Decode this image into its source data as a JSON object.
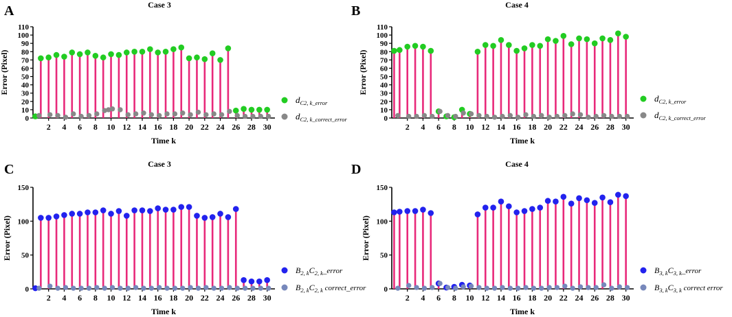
{
  "chart_data": [
    {
      "panel": "A",
      "type": "lollipop",
      "title": "Case 3",
      "xlabel": "Time k",
      "ylabel": "Error (Pixel)",
      "xticks": [
        "2",
        "4",
        "6",
        "8",
        "10",
        "12",
        "14",
        "16",
        "18",
        "20",
        "22",
        "24",
        "26",
        "28",
        "30"
      ],
      "yticks": [
        "0",
        "10",
        "20",
        "30",
        "40",
        "50",
        "60",
        "70",
        "80",
        "90",
        "100",
        "110"
      ],
      "ylim": [
        0,
        110
      ],
      "xlim": [
        0,
        31
      ],
      "series": [
        {
          "name": "d_error",
          "legend_main": "d",
          "legend_sub": "C2, k_error",
          "color": "#22cc22",
          "x": [
            0.3,
            1,
            2,
            3,
            4,
            5,
            6,
            7,
            8,
            9,
            10,
            11,
            12,
            13,
            14,
            15,
            16,
            17,
            18,
            19,
            20,
            21,
            22,
            23,
            24,
            25,
            26,
            27,
            28,
            29,
            30
          ],
          "values": [
            2,
            72,
            73,
            76,
            74,
            79,
            77,
            79,
            75,
            73,
            77,
            76,
            79,
            80,
            80,
            83,
            79,
            80,
            83,
            85,
            72,
            73,
            71,
            78,
            70,
            84,
            9,
            11,
            10,
            10,
            10
          ]
        },
        {
          "name": "d_correct_error",
          "legend_main": "d",
          "legend_sub": "C2, k_correct_error",
          "color": "#888888",
          "x": [
            0.6,
            2,
            3,
            4,
            5,
            6,
            7,
            8,
            9,
            9.5,
            10,
            11,
            12,
            13,
            14,
            15,
            16,
            17,
            18,
            19,
            20,
            21,
            22,
            23,
            24,
            25,
            26,
            27,
            28,
            29,
            30
          ],
          "values": [
            3,
            4,
            3,
            1,
            5,
            2,
            3,
            5,
            9,
            10,
            11,
            10,
            4,
            5,
            6,
            4,
            3,
            5,
            5,
            6,
            4,
            7,
            4,
            5,
            4,
            8,
            3,
            2,
            2,
            2,
            2
          ]
        }
      ]
    },
    {
      "panel": "B",
      "type": "lollipop",
      "title": "Case 4",
      "xlabel": "Time k",
      "ylabel": "Error (Pixel)",
      "xticks": [
        "2",
        "4",
        "6",
        "8",
        "10",
        "12",
        "14",
        "16",
        "18",
        "20",
        "22",
        "24",
        "26",
        "28",
        "30"
      ],
      "yticks": [
        "0",
        "10",
        "20",
        "30",
        "40",
        "50",
        "60",
        "70",
        "80",
        "90",
        "100",
        "110"
      ],
      "ylim": [
        0,
        110
      ],
      "xlim": [
        0,
        31
      ],
      "series": [
        {
          "name": "d_error",
          "legend_main": "d",
          "legend_sub": "C2, k_error",
          "color": "#22cc22",
          "x": [
            0.3,
            1,
            2,
            3,
            4,
            5,
            6,
            7,
            8,
            9,
            10,
            11,
            12,
            13,
            14,
            15,
            16,
            17,
            18,
            19,
            20,
            21,
            22,
            23,
            24,
            25,
            26,
            27,
            28,
            29,
            30
          ],
          "values": [
            81,
            82,
            86,
            87,
            86,
            81,
            8,
            2,
            1,
            10,
            5,
            80,
            88,
            87,
            94,
            88,
            81,
            84,
            88,
            87,
            95,
            93,
            99,
            89,
            96,
            95,
            90,
            96,
            94,
            102,
            98
          ]
        },
        {
          "name": "d_correct_error",
          "legend_main": "d",
          "legend_sub": "C2, k_correct_error",
          "color": "#888888",
          "x": [
            0.6,
            2,
            3,
            4,
            5,
            6,
            7,
            8,
            9,
            10,
            11,
            12,
            13,
            14,
            15,
            16,
            17,
            18,
            19,
            20,
            21,
            22,
            23,
            24,
            25,
            26,
            27,
            28,
            29,
            30
          ],
          "values": [
            3,
            2,
            2,
            3,
            2,
            8,
            3,
            2,
            6,
            5,
            3,
            2,
            1,
            2,
            3,
            1,
            4,
            2,
            3,
            1,
            2,
            3,
            5,
            4,
            1,
            2,
            3,
            2,
            2,
            2
          ]
        }
      ]
    },
    {
      "panel": "C",
      "type": "lollipop",
      "title": "Case 3",
      "xlabel": "Time k",
      "ylabel": "Error (Pixel)",
      "xticks": [
        "2",
        "4",
        "6",
        "8",
        "10",
        "12",
        "14",
        "16",
        "18",
        "20",
        "22",
        "24",
        "26",
        "28",
        "30"
      ],
      "yticks": [
        "0",
        "50",
        "100",
        "150"
      ],
      "ylim": [
        0,
        150
      ],
      "xlim": [
        0,
        31
      ],
      "series": [
        {
          "name": "BC_error",
          "legend_main": "B",
          "legend_sub1": "2, k",
          "legend_mid": "C",
          "legend_sub2": "2, k",
          "legend_tail": "_error",
          "color": "#2222ee",
          "x": [
            0.3,
            1,
            2,
            3,
            4,
            5,
            6,
            7,
            8,
            9,
            10,
            11,
            12,
            13,
            14,
            15,
            16,
            17,
            18,
            19,
            20,
            21,
            22,
            23,
            24,
            25,
            26,
            27,
            28,
            29,
            30
          ],
          "values": [
            1,
            105,
            105,
            107,
            109,
            111,
            111,
            113,
            113,
            116,
            111,
            115,
            108,
            116,
            116,
            115,
            119,
            117,
            117,
            121,
            121,
            108,
            105,
            106,
            111,
            106,
            118,
            13,
            11,
            11,
            13
          ]
        },
        {
          "name": "BC_correct_error",
          "legend_main": "B",
          "legend_sub1": "2, k",
          "legend_mid": "C",
          "legend_sub2": "2, k",
          "legend_tail": " correct_error",
          "color": "#7788bb",
          "x": [
            0.6,
            2,
            3,
            4,
            5,
            6,
            7,
            8,
            9,
            10,
            11,
            12,
            13,
            14,
            15,
            16,
            17,
            18,
            19,
            20,
            21,
            22,
            23,
            24,
            25,
            26,
            27,
            28,
            29,
            30
          ],
          "values": [
            1,
            4,
            1,
            2,
            1,
            1,
            1,
            2,
            1,
            2,
            1,
            1,
            2,
            1,
            1,
            2,
            1,
            1,
            1,
            2,
            1,
            2,
            1,
            1,
            2,
            1,
            1,
            1,
            1,
            1
          ]
        }
      ]
    },
    {
      "panel": "D",
      "type": "lollipop",
      "title": "Case 4",
      "xlabel": "Time k",
      "ylabel": "Error (Pixel)",
      "xticks": [
        "2",
        "4",
        "6",
        "8",
        "10",
        "12",
        "14",
        "16",
        "18",
        "20",
        "22",
        "24",
        "26",
        "28",
        "30"
      ],
      "yticks": [
        "0",
        "50",
        "100",
        "150"
      ],
      "ylim": [
        0,
        150
      ],
      "xlim": [
        0,
        31
      ],
      "series": [
        {
          "name": "BC_error",
          "legend_main": "B",
          "legend_sub1": "3, k",
          "legend_mid": "C",
          "legend_sub2": "3, k",
          "legend_tail": "_error",
          "color": "#2222ee",
          "x": [
            0.3,
            1,
            2,
            3,
            4,
            5,
            6,
            7,
            8,
            9,
            10,
            11,
            12,
            13,
            14,
            15,
            16,
            17,
            18,
            19,
            20,
            21,
            22,
            23,
            24,
            25,
            26,
            27,
            28,
            29,
            30
          ],
          "values": [
            113,
            114,
            115,
            115,
            117,
            112,
            8,
            2,
            3,
            6,
            5,
            110,
            120,
            120,
            129,
            122,
            113,
            115,
            118,
            120,
            130,
            129,
            136,
            126,
            134,
            131,
            127,
            135,
            128,
            139,
            137
          ]
        },
        {
          "name": "BC_correct_error",
          "legend_main": "B",
          "legend_sub1": "3, k",
          "legend_mid": "C",
          "legend_sub2": "3, k",
          "legend_tail": " correct error",
          "color": "#7788bb",
          "x": [
            0.6,
            2,
            3,
            4,
            5,
            6,
            7,
            8,
            9,
            10,
            11,
            12,
            13,
            14,
            15,
            16,
            17,
            18,
            19,
            20,
            21,
            22,
            23,
            24,
            25,
            26,
            27,
            28,
            29,
            30
          ],
          "values": [
            1,
            5,
            2,
            1,
            2,
            8,
            2,
            1,
            3,
            4,
            2,
            1,
            1,
            2,
            1,
            1,
            2,
            1,
            1,
            2,
            2,
            4,
            1,
            3,
            2,
            2,
            6,
            1,
            3,
            2
          ]
        }
      ]
    }
  ]
}
